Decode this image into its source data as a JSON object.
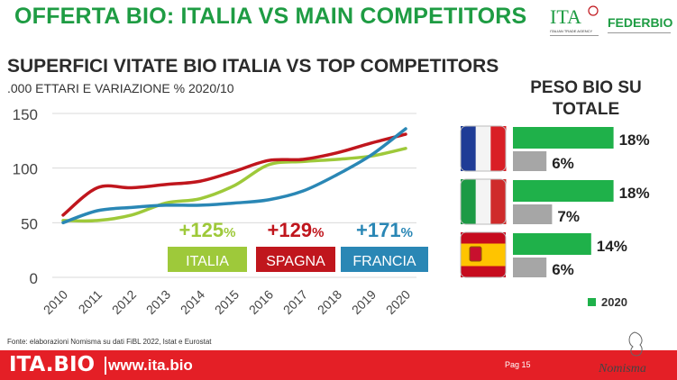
{
  "header": {
    "title": "OFFERTA BIO: ITALIA VS MAIN COMPETITORS",
    "ita_logo_text": "ITA",
    "ita_logo_caption": "ITALIAN TRADE AGENCY",
    "federbio_logo_text": "FEDERBIO"
  },
  "subtitle": "SUPERFICI VITATE BIO ITALIA VS TOP COMPETITORS",
  "subsubtitle": ".000 ETTARI E VARIAZIONE % 2020/10",
  "peso_title": "PESO BIO SU TOTALE",
  "source": "Fonte: elaborazioni Nomisma su dati FiBL 2022, Istat e Eurostat",
  "footer": {
    "brand": "ITA.BIO",
    "url": "www.ita.bio",
    "page": "Pag 15",
    "nomisma_logo": "Nomisma"
  },
  "colors": {
    "title_green": "#1e9c43",
    "italia": "#9ec93a",
    "spagna": "#c0161d",
    "francia": "#2a87b5",
    "bar2020": "#1fb14a",
    "barOther": "#a6a6a6",
    "footer_red": "#e41f26"
  },
  "chart_data": [
    {
      "type": "line",
      "x": [
        "2010",
        "2011",
        "2012",
        "2013",
        "2014",
        "2015",
        "2016",
        "2017",
        "2018",
        "2019",
        "2020"
      ],
      "ylim": [
        0,
        150
      ],
      "yticks": [
        "0",
        "50",
        "100",
        "150"
      ],
      "grid": true,
      "series": [
        {
          "name": "ITALIA",
          "color_key": "italia",
          "values": [
            52,
            52,
            57,
            68,
            72,
            84,
            103,
            106,
            108,
            111,
            118
          ]
        },
        {
          "name": "SPAGNA",
          "color_key": "spagna",
          "values": [
            57,
            82,
            82,
            85,
            88,
            97,
            107,
            108,
            114,
            123,
            131
          ]
        },
        {
          "name": "FRANCIA",
          "color_key": "francia",
          "values": [
            50,
            61,
            64,
            66,
            66,
            68,
            71,
            79,
            94,
            112,
            136
          ]
        }
      ],
      "annotations": [
        {
          "country": "ITALIA",
          "change_num": "+125",
          "pct": "%",
          "color_key": "italia"
        },
        {
          "country": "SPAGNA",
          "change_num": "+129",
          "pct": "%",
          "color_key": "spagna"
        },
        {
          "country": "FRANCIA",
          "change_num": "+171",
          "pct": "%",
          "color_key": "francia"
        }
      ]
    },
    {
      "type": "bar",
      "orientation": "horizontal",
      "title": "PESO BIO SU TOTALE",
      "categories": [
        "Francia",
        "Italia",
        "Spagna"
      ],
      "series": [
        {
          "name": "2020",
          "color_key": "bar2020",
          "values": [
            18,
            18,
            14
          ]
        },
        {
          "color_key": "barOther",
          "values": [
            6,
            7,
            6
          ]
        }
      ],
      "value_labels": [
        [
          "18%",
          "6%"
        ],
        [
          "18%",
          "7%"
        ],
        [
          "14%",
          "6%"
        ]
      ],
      "legend": "bottom",
      "legend_label": "2020"
    }
  ]
}
